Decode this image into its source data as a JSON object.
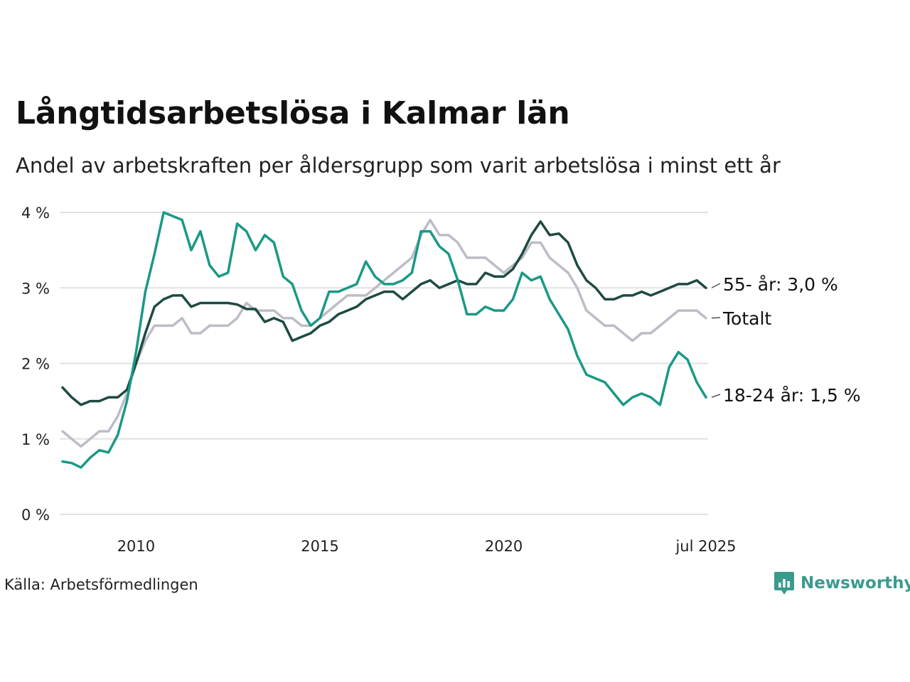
{
  "title": "Långtidsarbetslösa i Kalmar län",
  "subtitle": "Andel av arbetskraften per åldersgrupp som varit arbetslösa i minst ett år",
  "source": "Källa: Arbetsförmedlingen",
  "brand": {
    "name": "Newsworthy",
    "icon": "newsworthy-logo-icon",
    "color": "#3a9a8e"
  },
  "chart_data": {
    "type": "line",
    "x_range": [
      "2008-01",
      "2025-07"
    ],
    "ylim": [
      0,
      4
    ],
    "y_ticks": [
      0,
      1,
      2,
      3,
      4
    ],
    "y_tick_labels": [
      "0 %",
      "1 %",
      "2 %",
      "3 %",
      "4 %"
    ],
    "x_ticks": [
      {
        "x": "2010-01",
        "label": "2010"
      },
      {
        "x": "2015-01",
        "label": "2015"
      },
      {
        "x": "2020-01",
        "label": "2020"
      },
      {
        "x": "2025-07",
        "label": "jul 2025"
      }
    ],
    "grid": "horizontal",
    "series": [
      {
        "name": "Totalt",
        "label": "Totalt",
        "color": "#bdbcc7",
        "points": [
          [
            "2008-01",
            1.1
          ],
          [
            "2008-04",
            1.0
          ],
          [
            "2008-07",
            0.9
          ],
          [
            "2008-10",
            1.0
          ],
          [
            "2009-01",
            1.1
          ],
          [
            "2009-04",
            1.1
          ],
          [
            "2009-07",
            1.3
          ],
          [
            "2009-10",
            1.6
          ],
          [
            "2010-01",
            2.0
          ],
          [
            "2010-04",
            2.3
          ],
          [
            "2010-07",
            2.5
          ],
          [
            "2010-10",
            2.5
          ],
          [
            "2011-01",
            2.5
          ],
          [
            "2011-04",
            2.6
          ],
          [
            "2011-07",
            2.4
          ],
          [
            "2011-10",
            2.4
          ],
          [
            "2012-01",
            2.5
          ],
          [
            "2012-04",
            2.5
          ],
          [
            "2012-07",
            2.5
          ],
          [
            "2012-10",
            2.6
          ],
          [
            "2013-01",
            2.8
          ],
          [
            "2013-04",
            2.7
          ],
          [
            "2013-07",
            2.7
          ],
          [
            "2013-10",
            2.7
          ],
          [
            "2014-01",
            2.6
          ],
          [
            "2014-04",
            2.6
          ],
          [
            "2014-07",
            2.5
          ],
          [
            "2014-10",
            2.5
          ],
          [
            "2015-01",
            2.6
          ],
          [
            "2015-04",
            2.7
          ],
          [
            "2015-07",
            2.8
          ],
          [
            "2015-10",
            2.9
          ],
          [
            "2016-01",
            2.9
          ],
          [
            "2016-04",
            2.9
          ],
          [
            "2016-07",
            3.0
          ],
          [
            "2016-10",
            3.1
          ],
          [
            "2017-01",
            3.2
          ],
          [
            "2017-04",
            3.3
          ],
          [
            "2017-07",
            3.4
          ],
          [
            "2017-10",
            3.7
          ],
          [
            "2018-01",
            3.9
          ],
          [
            "2018-04",
            3.7
          ],
          [
            "2018-07",
            3.7
          ],
          [
            "2018-10",
            3.6
          ],
          [
            "2019-01",
            3.4
          ],
          [
            "2019-04",
            3.4
          ],
          [
            "2019-07",
            3.4
          ],
          [
            "2019-10",
            3.3
          ],
          [
            "2020-01",
            3.2
          ],
          [
            "2020-04",
            3.3
          ],
          [
            "2020-07",
            3.4
          ],
          [
            "2020-10",
            3.6
          ],
          [
            "2021-01",
            3.6
          ],
          [
            "2021-04",
            3.4
          ],
          [
            "2021-07",
            3.3
          ],
          [
            "2021-10",
            3.2
          ],
          [
            "2022-01",
            3.0
          ],
          [
            "2022-04",
            2.7
          ],
          [
            "2022-07",
            2.6
          ],
          [
            "2022-10",
            2.5
          ],
          [
            "2023-01",
            2.5
          ],
          [
            "2023-04",
            2.4
          ],
          [
            "2023-07",
            2.3
          ],
          [
            "2023-10",
            2.4
          ],
          [
            "2024-01",
            2.4
          ],
          [
            "2024-04",
            2.5
          ],
          [
            "2024-07",
            2.6
          ],
          [
            "2024-10",
            2.7
          ],
          [
            "2025-01",
            2.7
          ],
          [
            "2025-04",
            2.7
          ],
          [
            "2025-07",
            2.6
          ]
        ]
      },
      {
        "name": "55- år",
        "label": "55- år: 3,0 %",
        "color": "#1e4a42",
        "points": [
          [
            "2008-01",
            1.68
          ],
          [
            "2008-04",
            1.55
          ],
          [
            "2008-07",
            1.45
          ],
          [
            "2008-10",
            1.5
          ],
          [
            "2009-01",
            1.5
          ],
          [
            "2009-04",
            1.55
          ],
          [
            "2009-07",
            1.55
          ],
          [
            "2009-10",
            1.65
          ],
          [
            "2010-01",
            2.0
          ],
          [
            "2010-04",
            2.4
          ],
          [
            "2010-07",
            2.75
          ],
          [
            "2010-10",
            2.85
          ],
          [
            "2011-01",
            2.9
          ],
          [
            "2011-04",
            2.9
          ],
          [
            "2011-07",
            2.75
          ],
          [
            "2011-10",
            2.8
          ],
          [
            "2012-01",
            2.8
          ],
          [
            "2012-04",
            2.8
          ],
          [
            "2012-07",
            2.8
          ],
          [
            "2012-10",
            2.78
          ],
          [
            "2013-01",
            2.72
          ],
          [
            "2013-04",
            2.72
          ],
          [
            "2013-07",
            2.55
          ],
          [
            "2013-10",
            2.6
          ],
          [
            "2014-01",
            2.55
          ],
          [
            "2014-04",
            2.3
          ],
          [
            "2014-07",
            2.35
          ],
          [
            "2014-10",
            2.4
          ],
          [
            "2015-01",
            2.5
          ],
          [
            "2015-04",
            2.55
          ],
          [
            "2015-07",
            2.65
          ],
          [
            "2015-10",
            2.7
          ],
          [
            "2016-01",
            2.75
          ],
          [
            "2016-04",
            2.85
          ],
          [
            "2016-07",
            2.9
          ],
          [
            "2016-10",
            2.95
          ],
          [
            "2017-01",
            2.95
          ],
          [
            "2017-04",
            2.85
          ],
          [
            "2017-07",
            2.95
          ],
          [
            "2017-10",
            3.05
          ],
          [
            "2018-01",
            3.1
          ],
          [
            "2018-04",
            3.0
          ],
          [
            "2018-07",
            3.05
          ],
          [
            "2018-10",
            3.1
          ],
          [
            "2019-01",
            3.05
          ],
          [
            "2019-04",
            3.05
          ],
          [
            "2019-07",
            3.2
          ],
          [
            "2019-10",
            3.15
          ],
          [
            "2020-01",
            3.15
          ],
          [
            "2020-04",
            3.25
          ],
          [
            "2020-07",
            3.45
          ],
          [
            "2020-10",
            3.7
          ],
          [
            "2021-01",
            3.88
          ],
          [
            "2021-04",
            3.7
          ],
          [
            "2021-07",
            3.72
          ],
          [
            "2021-10",
            3.6
          ],
          [
            "2022-01",
            3.3
          ],
          [
            "2022-04",
            3.1
          ],
          [
            "2022-07",
            3.0
          ],
          [
            "2022-10",
            2.85
          ],
          [
            "2023-01",
            2.85
          ],
          [
            "2023-04",
            2.9
          ],
          [
            "2023-07",
            2.9
          ],
          [
            "2023-10",
            2.95
          ],
          [
            "2024-01",
            2.9
          ],
          [
            "2024-04",
            2.95
          ],
          [
            "2024-07",
            3.0
          ],
          [
            "2024-10",
            3.05
          ],
          [
            "2025-01",
            3.05
          ],
          [
            "2025-04",
            3.1
          ],
          [
            "2025-07",
            3.0
          ]
        ]
      },
      {
        "name": "18-24 år",
        "label": "18-24 år: 1,5 %",
        "color": "#1a9985",
        "points": [
          [
            "2008-01",
            0.7
          ],
          [
            "2008-04",
            0.68
          ],
          [
            "2008-07",
            0.62
          ],
          [
            "2008-10",
            0.75
          ],
          [
            "2009-01",
            0.85
          ],
          [
            "2009-04",
            0.82
          ],
          [
            "2009-07",
            1.05
          ],
          [
            "2009-10",
            1.5
          ],
          [
            "2010-01",
            2.15
          ],
          [
            "2010-04",
            2.95
          ],
          [
            "2010-07",
            3.45
          ],
          [
            "2010-10",
            4.0
          ],
          [
            "2011-01",
            3.95
          ],
          [
            "2011-04",
            3.9
          ],
          [
            "2011-07",
            3.5
          ],
          [
            "2011-10",
            3.75
          ],
          [
            "2012-01",
            3.3
          ],
          [
            "2012-04",
            3.15
          ],
          [
            "2012-07",
            3.2
          ],
          [
            "2012-10",
            3.85
          ],
          [
            "2013-01",
            3.75
          ],
          [
            "2013-04",
            3.5
          ],
          [
            "2013-07",
            3.7
          ],
          [
            "2013-10",
            3.6
          ],
          [
            "2014-01",
            3.15
          ],
          [
            "2014-04",
            3.05
          ],
          [
            "2014-07",
            2.7
          ],
          [
            "2014-10",
            2.5
          ],
          [
            "2015-01",
            2.6
          ],
          [
            "2015-04",
            2.95
          ],
          [
            "2015-07",
            2.95
          ],
          [
            "2015-10",
            3.0
          ],
          [
            "2016-01",
            3.05
          ],
          [
            "2016-04",
            3.35
          ],
          [
            "2016-07",
            3.15
          ],
          [
            "2016-10",
            3.05
          ],
          [
            "2017-01",
            3.05
          ],
          [
            "2017-04",
            3.1
          ],
          [
            "2017-07",
            3.2
          ],
          [
            "2017-10",
            3.75
          ],
          [
            "2018-01",
            3.75
          ],
          [
            "2018-04",
            3.55
          ],
          [
            "2018-07",
            3.45
          ],
          [
            "2018-10",
            3.1
          ],
          [
            "2019-01",
            2.65
          ],
          [
            "2019-04",
            2.65
          ],
          [
            "2019-07",
            2.75
          ],
          [
            "2019-10",
            2.7
          ],
          [
            "2020-01",
            2.7
          ],
          [
            "2020-04",
            2.85
          ],
          [
            "2020-07",
            3.2
          ],
          [
            "2020-10",
            3.1
          ],
          [
            "2021-01",
            3.15
          ],
          [
            "2021-04",
            2.85
          ],
          [
            "2021-07",
            2.65
          ],
          [
            "2021-10",
            2.45
          ],
          [
            "2022-01",
            2.1
          ],
          [
            "2022-04",
            1.85
          ],
          [
            "2022-07",
            1.8
          ],
          [
            "2022-10",
            1.75
          ],
          [
            "2023-01",
            1.6
          ],
          [
            "2023-04",
            1.45
          ],
          [
            "2023-07",
            1.55
          ],
          [
            "2023-10",
            1.6
          ],
          [
            "2024-01",
            1.55
          ],
          [
            "2024-04",
            1.45
          ],
          [
            "2024-07",
            1.95
          ],
          [
            "2024-10",
            2.15
          ],
          [
            "2025-01",
            2.05
          ],
          [
            "2025-04",
            1.75
          ],
          [
            "2025-07",
            1.55
          ]
        ]
      }
    ]
  }
}
